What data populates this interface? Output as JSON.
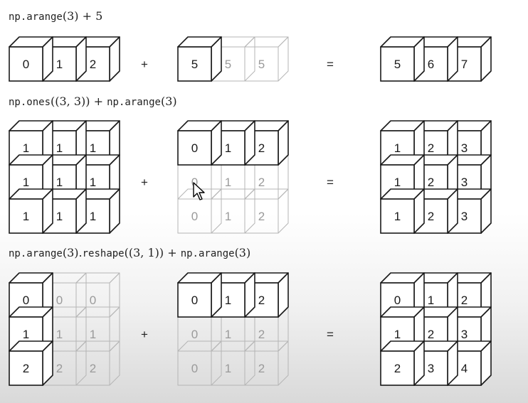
{
  "rows": [
    {
      "expr": [
        {
          "t": "np.arange",
          "code": true
        },
        {
          "t": "(3) + 5",
          "code": false
        }
      ],
      "left": {
        "rows": 1,
        "cols": 3,
        "values": [
          [
            "0",
            "1",
            "2"
          ]
        ],
        "solid": [
          [
            true,
            true,
            true
          ]
        ]
      },
      "op": "+",
      "right": {
        "rows": 1,
        "cols": 3,
        "values": [
          [
            "5",
            "5",
            "5"
          ]
        ],
        "solid": [
          [
            true,
            false,
            false
          ]
        ]
      },
      "eq": "=",
      "result": {
        "rows": 1,
        "cols": 3,
        "values": [
          [
            "5",
            "6",
            "7"
          ]
        ],
        "solid": [
          [
            true,
            true,
            true
          ]
        ]
      }
    },
    {
      "expr": [
        {
          "t": "np.ones",
          "code": true
        },
        {
          "t": "((3, 3)) + ",
          "code": false
        },
        {
          "t": "np.arange",
          "code": true
        },
        {
          "t": "(3)",
          "code": false
        }
      ],
      "left": {
        "rows": 3,
        "cols": 3,
        "values": [
          [
            "1",
            "1",
            "1"
          ],
          [
            "1",
            "1",
            "1"
          ],
          [
            "1",
            "1",
            "1"
          ]
        ],
        "solid": [
          [
            true,
            true,
            true
          ],
          [
            true,
            true,
            true
          ],
          [
            true,
            true,
            true
          ]
        ]
      },
      "op": "+",
      "right": {
        "rows": 3,
        "cols": 3,
        "values": [
          [
            "0",
            "1",
            "2"
          ],
          [
            "0",
            "1",
            "2"
          ],
          [
            "0",
            "1",
            "2"
          ]
        ],
        "solid": [
          [
            true,
            true,
            true
          ],
          [
            false,
            false,
            false
          ],
          [
            false,
            false,
            false
          ]
        ]
      },
      "eq": "=",
      "result": {
        "rows": 3,
        "cols": 3,
        "values": [
          [
            "1",
            "2",
            "3"
          ],
          [
            "1",
            "2",
            "3"
          ],
          [
            "1",
            "2",
            "3"
          ]
        ],
        "solid": [
          [
            true,
            true,
            true
          ],
          [
            true,
            true,
            true
          ],
          [
            true,
            true,
            true
          ]
        ]
      }
    },
    {
      "expr": [
        {
          "t": "np.arange",
          "code": true
        },
        {
          "t": "(3).",
          "code": false
        },
        {
          "t": "reshape",
          "code": true
        },
        {
          "t": "((3, 1)) + ",
          "code": false
        },
        {
          "t": "np.arange",
          "code": true
        },
        {
          "t": "(3)",
          "code": false
        }
      ],
      "left": {
        "rows": 3,
        "cols": 3,
        "values": [
          [
            "0",
            "0",
            "0"
          ],
          [
            "1",
            "1",
            "1"
          ],
          [
            "2",
            "2",
            "2"
          ]
        ],
        "solid": [
          [
            true,
            false,
            false
          ],
          [
            true,
            false,
            false
          ],
          [
            true,
            false,
            false
          ]
        ]
      },
      "op": "+",
      "right": {
        "rows": 3,
        "cols": 3,
        "values": [
          [
            "0",
            "1",
            "2"
          ],
          [
            "0",
            "1",
            "2"
          ],
          [
            "0",
            "1",
            "2"
          ]
        ],
        "solid": [
          [
            true,
            true,
            true
          ],
          [
            false,
            false,
            false
          ],
          [
            false,
            false,
            false
          ]
        ]
      },
      "eq": "=",
      "result": {
        "rows": 3,
        "cols": 3,
        "values": [
          [
            "0",
            "1",
            "2"
          ],
          [
            "1",
            "2",
            "3"
          ],
          [
            "2",
            "3",
            "4"
          ]
        ],
        "solid": [
          [
            true,
            true,
            true
          ],
          [
            true,
            true,
            true
          ],
          [
            true,
            true,
            true
          ]
        ]
      }
    }
  ],
  "colors": {
    "solid": "#1a1a1a",
    "ghost": "#b5b5b5",
    "solid_text": "#1a1a1a",
    "ghost_text": "#9a9a9a"
  }
}
